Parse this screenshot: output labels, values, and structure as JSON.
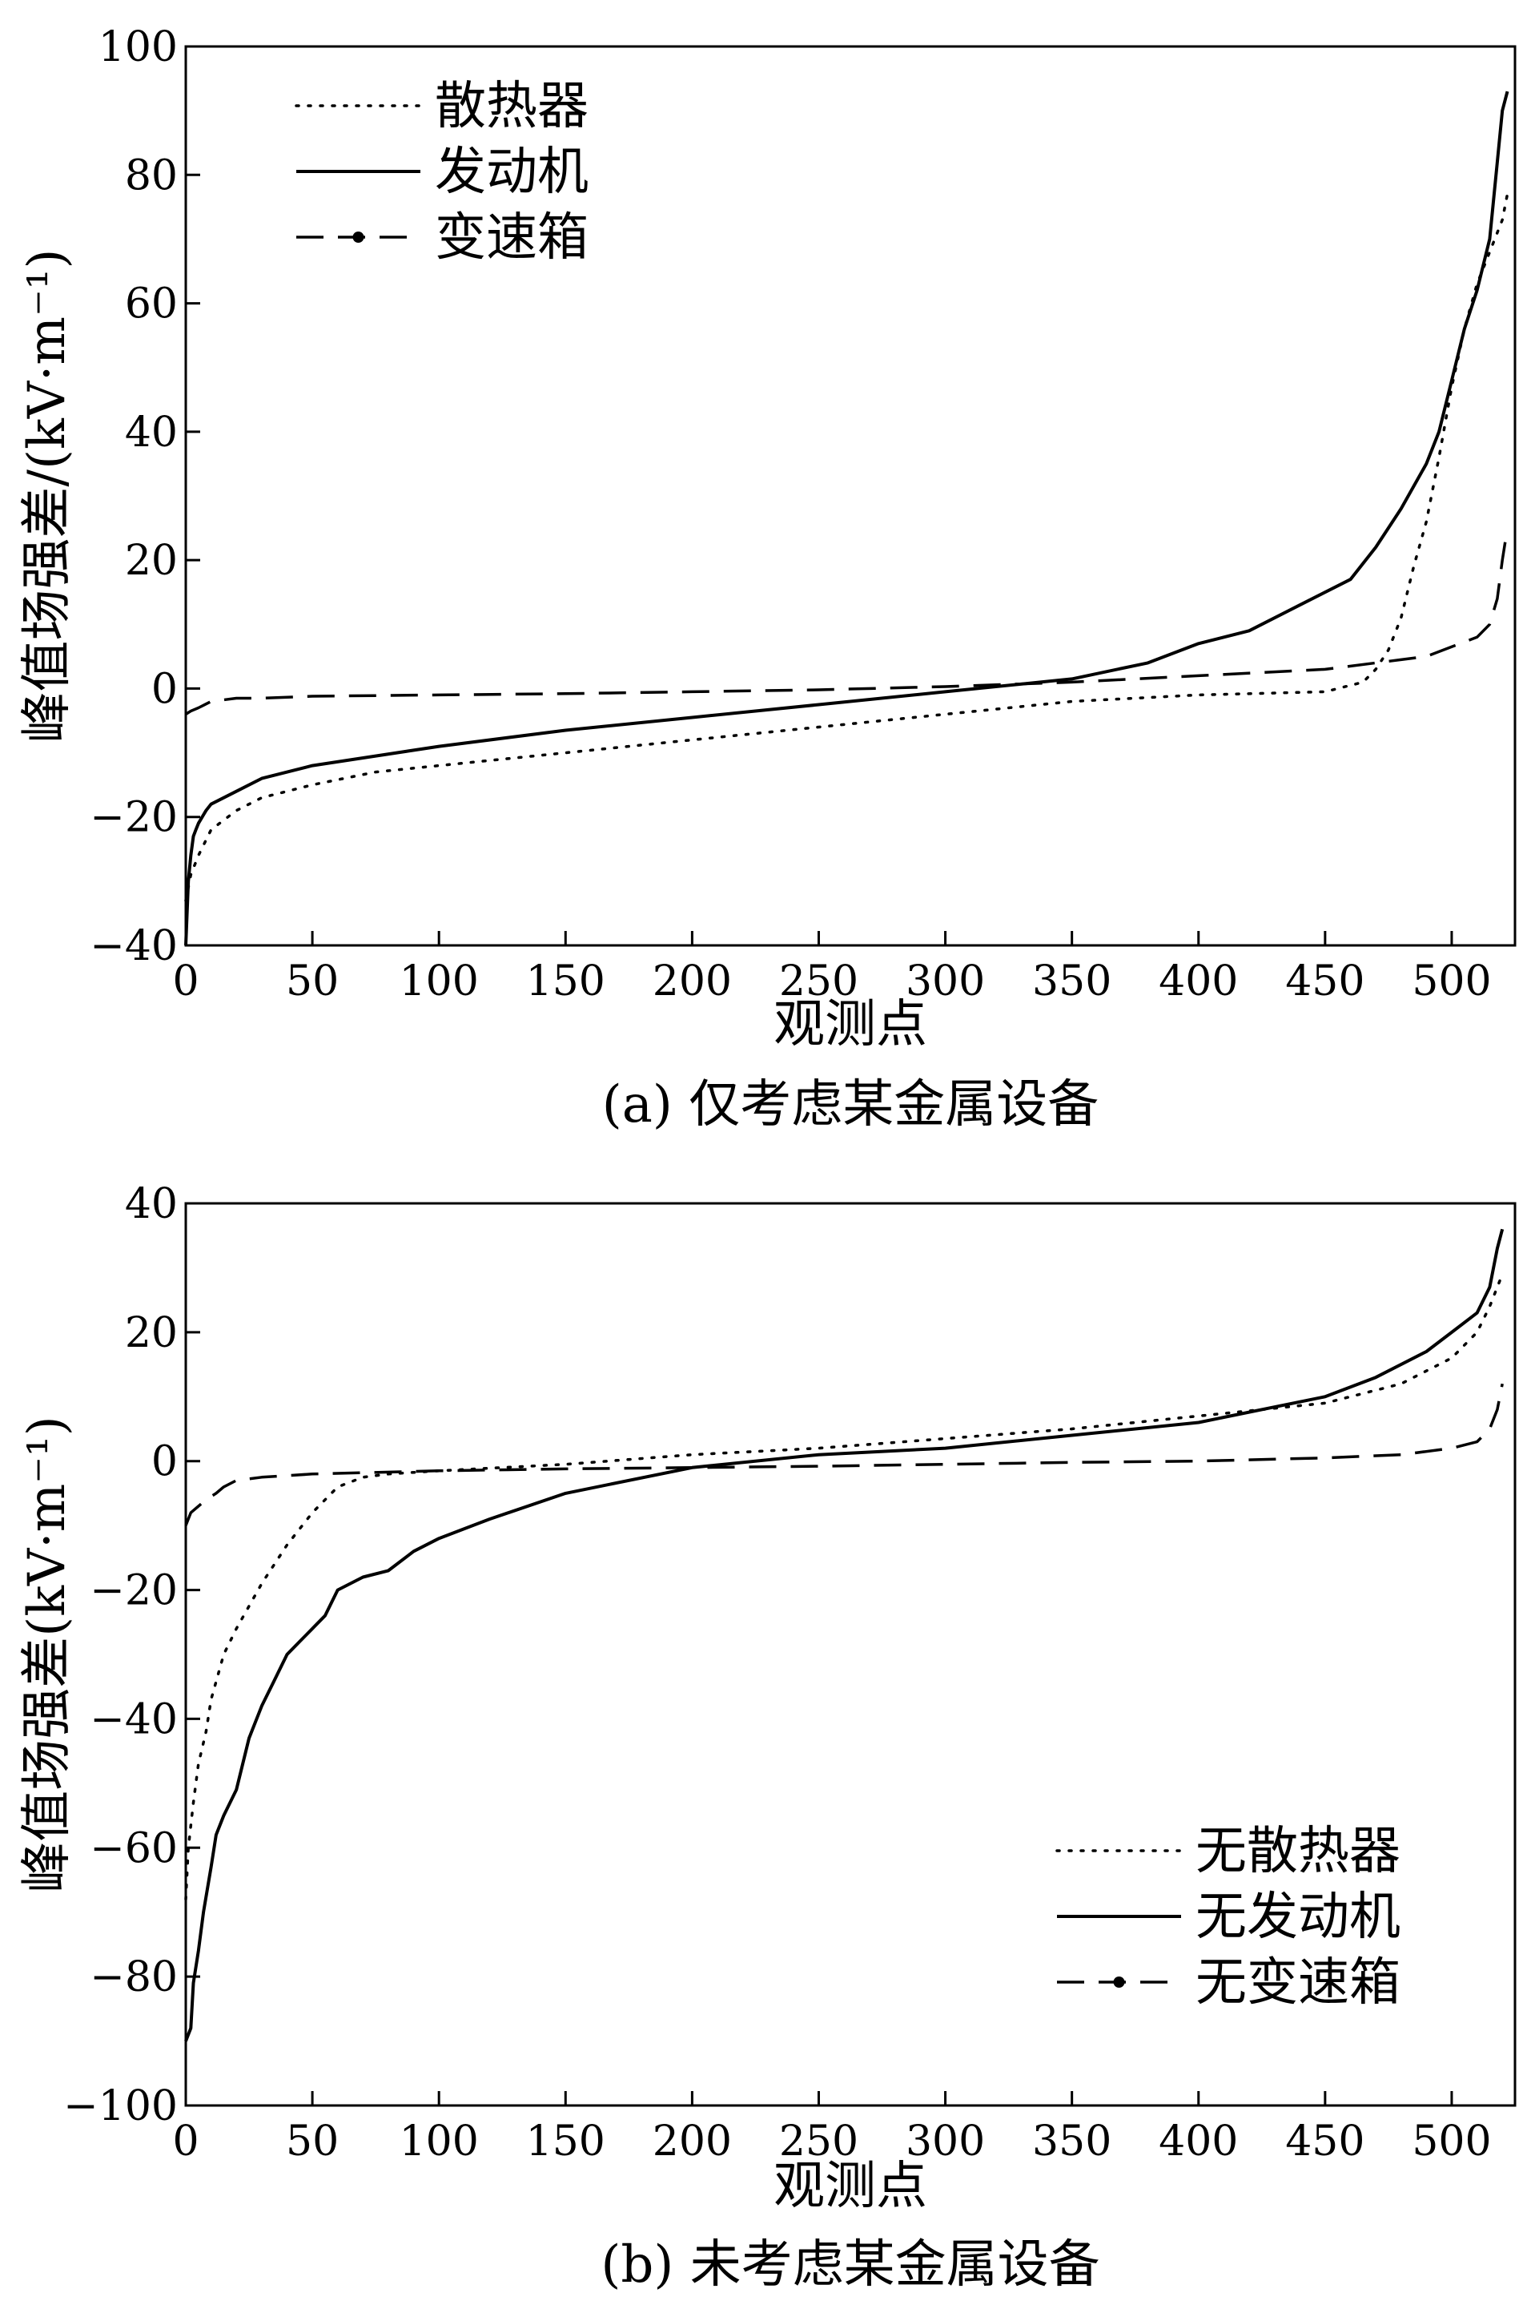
{
  "figure": {
    "panels": [
      {
        "caption": "(a) 仅考虑某金属设备",
        "xlabel": "观测点",
        "ylabel": "峰值场强差/(kV·m⁻¹)",
        "xticks": [
          "0",
          "50",
          "100",
          "150",
          "200",
          "250",
          "300",
          "350",
          "400",
          "450",
          "500"
        ],
        "yticks": [
          "−40",
          "−20",
          "0",
          "20",
          "40",
          "60",
          "80",
          "100"
        ],
        "legend_position": "top-left",
        "legend": [
          "散热器",
          "发动机",
          "变速箱"
        ]
      },
      {
        "caption": "(b) 未考虑某金属设备",
        "xlabel": "观测点",
        "ylabel": "峰值场强差(kV·m⁻¹)",
        "xticks": [
          "0",
          "50",
          "100",
          "150",
          "200",
          "250",
          "300",
          "350",
          "400",
          "450",
          "500"
        ],
        "yticks": [
          "−100",
          "−80",
          "−60",
          "−40",
          "−20",
          "0",
          "20",
          "40"
        ],
        "legend_position": "bottom-right",
        "legend": [
          "无散热器",
          "无发动机",
          "无变速箱"
        ]
      }
    ]
  },
  "chart_data": [
    {
      "type": "line",
      "title": "(a) 仅考虑某金属设备",
      "xlabel": "观测点",
      "ylabel": "峰值场强差/(kV·m⁻¹)",
      "xlim": [
        0,
        525
      ],
      "ylim": [
        -40,
        100
      ],
      "grid": false,
      "legend_position": "top-left",
      "series": [
        {
          "name": "散热器",
          "style": "dotted",
          "x": [
            0,
            2,
            5,
            10,
            20,
            30,
            50,
            75,
            100,
            150,
            200,
            250,
            300,
            350,
            400,
            450,
            465,
            470,
            475,
            480,
            485,
            490,
            495,
            500,
            505,
            510,
            515,
            520,
            522
          ],
          "y": [
            -33,
            -29,
            -26,
            -22,
            -19,
            -17,
            -15,
            -13,
            -12,
            -10,
            -8,
            -6,
            -4,
            -2,
            -1,
            -0.5,
            1,
            3,
            6,
            11,
            19,
            26,
            36,
            47,
            56,
            63,
            68,
            73,
            77
          ]
        },
        {
          "name": "发动机",
          "style": "solid",
          "x": [
            0,
            1,
            2,
            3,
            4,
            5,
            8,
            10,
            20,
            30,
            50,
            75,
            100,
            150,
            200,
            250,
            300,
            350,
            380,
            400,
            420,
            440,
            460,
            470,
            480,
            490,
            495,
            500,
            505,
            510,
            515,
            518,
            520,
            522
          ],
          "y": [
            -40,
            -30,
            -26,
            -23,
            -22,
            -21,
            -19,
            -18,
            -16,
            -14,
            -12,
            -10.5,
            -9,
            -6.5,
            -4.5,
            -2.5,
            -0.5,
            1.5,
            4,
            7,
            9,
            13,
            17,
            22,
            28,
            35,
            40,
            48,
            56,
            62,
            70,
            82,
            90,
            93
          ]
        },
        {
          "name": "变速箱",
          "style": "dashed",
          "x": [
            0,
            2,
            5,
            10,
            20,
            30,
            50,
            100,
            150,
            200,
            250,
            300,
            350,
            400,
            450,
            470,
            480,
            490,
            500,
            510,
            515,
            518,
            520,
            522
          ],
          "y": [
            -4,
            -3.5,
            -3,
            -2,
            -1.5,
            -1.5,
            -1.2,
            -1,
            -0.8,
            -0.5,
            -0.2,
            0.3,
            1,
            2,
            3,
            4,
            4.5,
            5,
            6.5,
            8,
            10,
            14,
            20,
            25
          ]
        }
      ]
    },
    {
      "type": "line",
      "title": "(b) 未考虑某金属设备",
      "xlabel": "观测点",
      "ylabel": "峰值场强差(kV·m⁻¹)",
      "xlim": [
        0,
        525
      ],
      "ylim": [
        -100,
        40
      ],
      "grid": false,
      "legend_position": "bottom-right",
      "series": [
        {
          "name": "无散热器",
          "style": "dotted",
          "x": [
            0,
            1,
            3,
            5,
            8,
            10,
            15,
            20,
            30,
            40,
            50,
            60,
            70,
            80,
            100,
            150,
            200,
            250,
            300,
            350,
            400,
            450,
            480,
            500,
            510,
            515,
            520
          ],
          "y": [
            -68,
            -60,
            -53,
            -47,
            -42,
            -37,
            -30,
            -26,
            -19,
            -13,
            -8,
            -4,
            -2.5,
            -2,
            -1.5,
            -0.5,
            1,
            2,
            3.5,
            5,
            7,
            9,
            12,
            16,
            20,
            24,
            29
          ]
        },
        {
          "name": "无发动机",
          "style": "solid",
          "x": [
            0,
            2,
            3,
            5,
            7,
            10,
            12,
            15,
            20,
            25,
            30,
            35,
            40,
            45,
            50,
            55,
            60,
            70,
            80,
            90,
            100,
            120,
            150,
            200,
            250,
            300,
            350,
            400,
            450,
            470,
            490,
            500,
            510,
            515,
            518,
            520
          ],
          "y": [
            -90,
            -88,
            -81,
            -76,
            -70,
            -63,
            -58,
            -55,
            -51,
            -43,
            -38,
            -34,
            -30,
            -28,
            -26,
            -24,
            -20,
            -18,
            -17,
            -14,
            -12,
            -9,
            -5,
            -1,
            1,
            2,
            4,
            6,
            10,
            13,
            17,
            20,
            23,
            27,
            33,
            36
          ]
        },
        {
          "name": "无变速箱",
          "style": "dashed",
          "x": [
            0,
            2,
            5,
            8,
            12,
            15,
            20,
            30,
            50,
            100,
            150,
            200,
            250,
            300,
            350,
            400,
            450,
            480,
            500,
            510,
            515,
            518,
            520
          ],
          "y": [
            -10,
            -8,
            -7,
            -6,
            -5,
            -4,
            -3,
            -2.5,
            -2,
            -1.5,
            -1.2,
            -1,
            -0.8,
            -0.5,
            -0.2,
            0,
            0.5,
            1,
            2,
            3,
            5,
            8,
            12
          ]
        }
      ]
    }
  ]
}
